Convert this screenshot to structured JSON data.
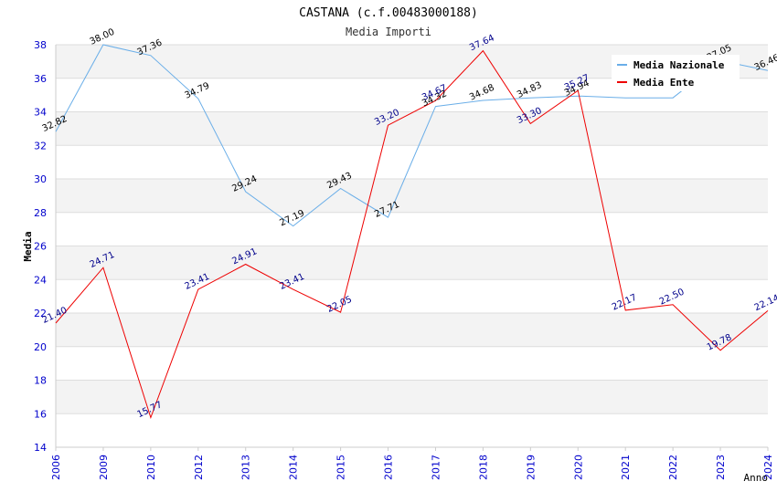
{
  "chart_data": {
    "type": "line",
    "title": "CASTANA (c.f.00483000188)",
    "subtitle": "Media Importi",
    "xlabel": "Anno",
    "ylabel": "Media",
    "ylim": [
      14,
      38
    ],
    "yticks": [
      14,
      16,
      18,
      20,
      22,
      24,
      26,
      28,
      30,
      32,
      34,
      36,
      38
    ],
    "grid": true,
    "legend_position": "top-right",
    "categories": [
      "2006",
      "2009",
      "2010",
      "2012",
      "2013",
      "2014",
      "2015",
      "2016",
      "2017",
      "2018",
      "2019",
      "2020",
      "2021",
      "2022",
      "2023",
      "2024"
    ],
    "series": [
      {
        "name": "Media Nazionale",
        "color": "#6aaee8",
        "values": [
          32.82,
          38.0,
          37.36,
          34.79,
          29.24,
          27.19,
          29.43,
          27.71,
          34.32,
          34.68,
          34.83,
          34.94,
          34.83,
          34.83,
          37.05,
          36.46
        ],
        "labels": [
          "32.82",
          "38.00",
          "37.36",
          "34.79",
          "29.24",
          "27.19",
          "29.43",
          "27.71",
          "34.32",
          "34.68",
          "34.83",
          "34.94",
          "",
          "",
          "37.05",
          "36.46"
        ]
      },
      {
        "name": "Media Ente",
        "color": "#ee0000",
        "values": [
          21.4,
          24.71,
          15.77,
          23.41,
          24.91,
          23.41,
          22.05,
          33.2,
          34.67,
          37.64,
          33.3,
          35.27,
          22.17,
          22.5,
          19.78,
          22.14
        ],
        "labels": [
          "21.40",
          "24.71",
          "15.77",
          "23.41",
          "24.91",
          "23.41",
          "22.05",
          "33.20",
          "34.67",
          "37.64",
          "33.30",
          "35.27",
          "22.17",
          "22.50",
          "19.78",
          "22.14"
        ]
      }
    ]
  }
}
